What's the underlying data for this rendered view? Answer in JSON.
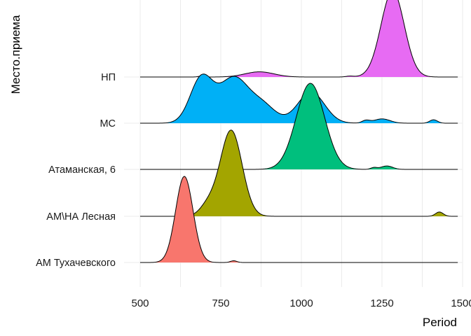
{
  "chart_data": {
    "type": "ridgeline",
    "xlabel": "Period",
    "ylabel": "Место.приема",
    "xlim": [
      450,
      1500
    ],
    "xticks": [
      500,
      750,
      1000,
      1250,
      1500
    ],
    "grid": true,
    "legend": "none",
    "x_range": [
      500,
      1485
    ],
    "categories": [
      "АМ Тухачевского",
      "АМ\\НА Лесная",
      "Атаманская, 6",
      "МС",
      "НП"
    ],
    "series": [
      {
        "category": "АМ Тухачевского",
        "color": "#F8766D",
        "peaks": [
          {
            "center": 637,
            "sd": 27,
            "height": 1.0
          },
          {
            "center": 790,
            "sd": 10,
            "height": 0.02
          }
        ]
      },
      {
        "category": "АМ\\НА Лесная",
        "color": "#A3A500",
        "peaks": [
          {
            "center": 782,
            "sd": 34,
            "height": 1.0
          },
          {
            "center": 710,
            "sd": 25,
            "height": 0.12
          },
          {
            "center": 1428,
            "sd": 12,
            "height": 0.05
          }
        ]
      },
      {
        "category": "Атаманская, 6",
        "color": "#00BF7D",
        "peaks": [
          {
            "center": 1028,
            "sd": 44,
            "height": 1.0
          },
          {
            "center": 1265,
            "sd": 18,
            "height": 0.04
          },
          {
            "center": 1225,
            "sd": 10,
            "height": 0.02
          }
        ]
      },
      {
        "category": "МС",
        "color": "#00B0F6",
        "peaks": [
          {
            "center": 690,
            "sd": 35,
            "height": 0.52
          },
          {
            "center": 790,
            "sd": 45,
            "height": 0.52
          },
          {
            "center": 880,
            "sd": 40,
            "height": 0.2
          },
          {
            "center": 1030,
            "sd": 42,
            "height": 0.36
          },
          {
            "center": 1250,
            "sd": 25,
            "height": 0.05
          },
          {
            "center": 1200,
            "sd": 12,
            "height": 0.03
          },
          {
            "center": 1410,
            "sd": 12,
            "height": 0.04
          }
        ]
      },
      {
        "category": "НП",
        "color": "#E76BF3",
        "peaks": [
          {
            "center": 1283,
            "sd": 36,
            "height": 1.0
          },
          {
            "center": 870,
            "sd": 45,
            "height": 0.06
          },
          {
            "center": 1150,
            "sd": 12,
            "height": 0.01
          },
          {
            "center": 690,
            "sd": 10,
            "height": 0.01
          }
        ]
      }
    ]
  }
}
